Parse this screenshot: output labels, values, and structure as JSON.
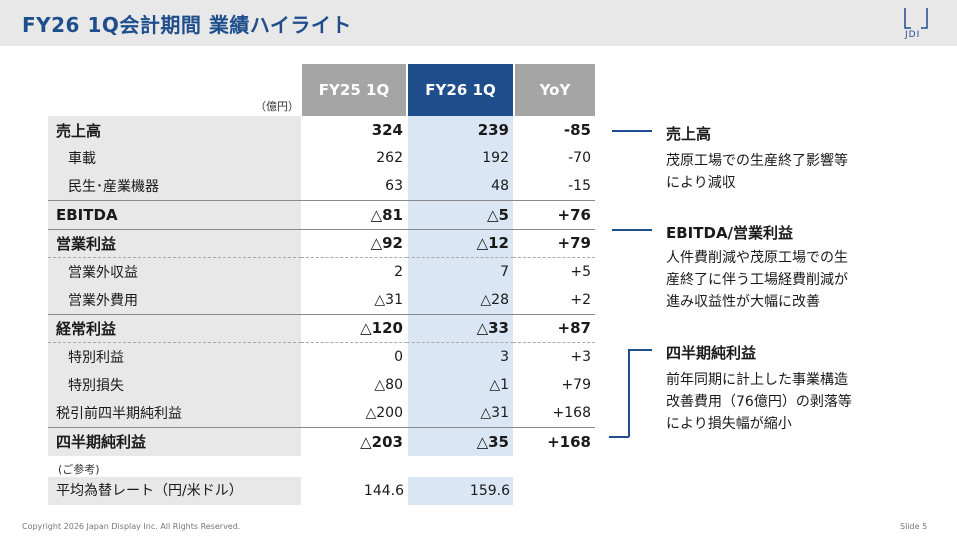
{
  "header": {
    "title": "FY26 1Q会計期間 業績ハイライト",
    "logo_text": "JDI"
  },
  "table": {
    "unit": "（億円）",
    "columns": [
      "FY25 1Q",
      "FY26 1Q",
      "YoY"
    ],
    "rows": [
      {
        "label": "売上高",
        "v1": "324",
        "v2": "239",
        "v3": "-85"
      },
      {
        "label": "車載",
        "v1": "262",
        "v2": "192",
        "v3": "-70"
      },
      {
        "label": "民生･産業機器",
        "v1": "63",
        "v2": "48",
        "v3": "-15"
      },
      {
        "label": "EBITDA",
        "v1": "△81",
        "v2": "△5",
        "v3": "+76"
      },
      {
        "label": "営業利益",
        "v1": "△92",
        "v2": "△12",
        "v3": "+79"
      },
      {
        "label": "営業外収益",
        "v1": "2",
        "v2": "7",
        "v3": "+5"
      },
      {
        "label": "営業外費用",
        "v1": "△31",
        "v2": "△28",
        "v3": "+2"
      },
      {
        "label": "経常利益",
        "v1": "△120",
        "v2": "△33",
        "v3": "+87"
      },
      {
        "label": "特別利益",
        "v1": "0",
        "v2": "3",
        "v3": "+3"
      },
      {
        "label": "特別損失",
        "v1": "△80",
        "v2": "△1",
        "v3": "+79"
      },
      {
        "label": "税引前四半期純利益",
        "v1": "△200",
        "v2": "△31",
        "v3": "+168"
      },
      {
        "label": "四半期純利益",
        "v1": "△203",
        "v2": "△35",
        "v3": "+168"
      }
    ],
    "reference_label": "(ご参考)",
    "fx": {
      "label": "平均為替レート（円/米ドル）",
      "v1": "144.6",
      "v2": "159.6"
    }
  },
  "annotations": [
    {
      "title": "売上高",
      "lines": [
        "茂原工場での生産終了影響等",
        "により減収"
      ]
    },
    {
      "title": "EBITDA/営業利益",
      "lines": [
        "人件費削減や茂原工場での生",
        "産終了に伴う工場経費削減が",
        "進み収益性が大幅に改善"
      ]
    },
    {
      "title": "四半期純利益",
      "lines": [
        "前年同期に計上した事業構造",
        "改善費用（76億円）の剥落等",
        "により損失幅が縮小"
      ]
    }
  ],
  "footer": {
    "copyright": "Copyright 2026 Japan Display Inc. All Rights Reserved.",
    "slide": "Slide 5"
  }
}
